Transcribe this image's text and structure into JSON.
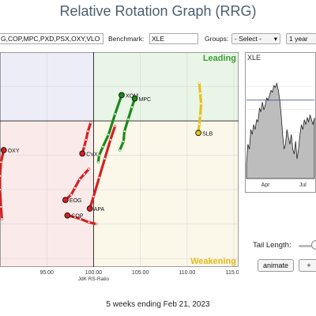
{
  "header": {
    "title": "Relative Rotation Graph (RRG)"
  },
  "controls": {
    "symbols_value": "G,COP,MPC,PXD,PSX,OXY,VLO",
    "benchmark_label": "Benchmark:",
    "benchmark_value": "XLE",
    "groups_label": "Groups:",
    "groups_value": "- Select -",
    "period_value": "1 year"
  },
  "colors": {
    "red": "#d42020",
    "green": "#1a8a1a",
    "yellow": "#e6c21a",
    "grid": "#d8d8d8"
  },
  "chart_data": [
    {
      "type": "scatter",
      "title": "",
      "xlabel": "JdK RS-Ratio",
      "ylabel": "",
      "xlim": [
        90,
        115.5
      ],
      "ylim": [
        91.5,
        104
      ],
      "xticks": [
        "95.00",
        "100.00",
        "105.00",
        "110.00",
        "115.00"
      ],
      "xtick_values": [
        95,
        100,
        105,
        110,
        115
      ],
      "center": [
        100,
        100
      ],
      "quadrants": {
        "top_right": "Leading",
        "bottom_right": "Weakening"
      },
      "grid": true,
      "series": [
        {
          "name": "XOM",
          "color": "green",
          "points": [
            [
              100.5,
              97.6
            ],
            [
              100.6,
              98.0
            ],
            [
              101.0,
              98.5
            ],
            [
              101.6,
              99.2
            ],
            [
              102.3,
              100.4
            ],
            [
              103.0,
              101.5
            ]
          ]
        },
        {
          "name": "MPC",
          "color": "green",
          "points": [
            [
              102.8,
              98.3
            ],
            [
              103.2,
              98.8
            ],
            [
              103.3,
              99.4
            ],
            [
              103.7,
              100.1
            ],
            [
              104.1,
              100.8
            ],
            [
              104.4,
              101.3
            ]
          ]
        },
        {
          "name": "SLB",
          "color": "yellow",
          "points": [
            [
              111.3,
              102.2
            ],
            [
              111.4,
              101.6
            ],
            [
              111.5,
              101.0
            ],
            [
              111.4,
              100.3
            ],
            [
              111.3,
              99.8
            ],
            [
              111.2,
              99.3
            ]
          ]
        },
        {
          "name": "OXY",
          "color": "red",
          "points": [
            [
              90.2,
              94.3
            ],
            [
              90.1,
              95.0
            ],
            [
              90.0,
              96.0
            ],
            [
              90.0,
              96.8
            ],
            [
              90.1,
              97.6
            ],
            [
              90.4,
              98.3
            ]
          ]
        },
        {
          "name": "CVX",
          "color": "red",
          "points": [
            [
              99.7,
              99.9
            ],
            [
              99.4,
              99.4
            ],
            [
              99.2,
              98.9
            ],
            [
              99.0,
              98.5
            ],
            [
              98.8,
              98.1
            ]
          ]
        },
        {
          "name": "EOG",
          "color": "red",
          "points": [
            [
              99.5,
              97.2
            ],
            [
              99.0,
              96.9
            ],
            [
              98.5,
              96.6
            ],
            [
              98.0,
              96.1
            ],
            [
              97.6,
              95.7
            ],
            [
              97.0,
              95.4
            ]
          ]
        },
        {
          "name": "APA",
          "color": "red",
          "points": [
            [
              102.3,
              99.7
            ],
            [
              101.8,
              98.9
            ],
            [
              101.2,
              97.8
            ],
            [
              100.6,
              96.7
            ],
            [
              100.0,
              95.6
            ],
            [
              99.6,
              94.9
            ]
          ]
        },
        {
          "name": "COP",
          "color": "red",
          "points": [
            [
              100.3,
              94.0
            ],
            [
              99.5,
              94.1
            ],
            [
              98.6,
              94.3
            ],
            [
              98.0,
              94.4
            ],
            [
              97.2,
              94.5
            ]
          ]
        }
      ]
    },
    {
      "type": "area",
      "title": "XLE",
      "xticks": [
        "Apr",
        "Jul"
      ],
      "values": [
        0.15,
        0.35,
        0.3,
        0.5,
        0.45,
        0.55,
        0.5,
        0.6,
        0.58,
        0.72,
        0.68,
        0.78,
        0.7,
        0.75,
        0.82,
        0.8,
        0.85,
        0.9,
        0.88,
        0.95,
        0.93,
        0.97,
        0.9,
        0.8,
        0.65,
        0.45,
        0.3,
        0.35,
        0.5,
        0.42,
        0.35,
        0.45,
        0.3,
        0.25,
        0.38,
        0.2,
        0.3,
        0.45,
        0.55,
        0.5,
        0.6,
        0.55,
        0.62,
        0.58,
        0.65,
        0.6,
        0.55,
        0.62
      ],
      "ylim": [
        0,
        1
      ],
      "reference_level": 0.8
    }
  ],
  "footer": {
    "caption": "5 weeks ending Feb 21, 2023"
  },
  "tail": {
    "label": "Tail Length:"
  },
  "buttons": {
    "animate": "animate",
    "plus": "+"
  }
}
